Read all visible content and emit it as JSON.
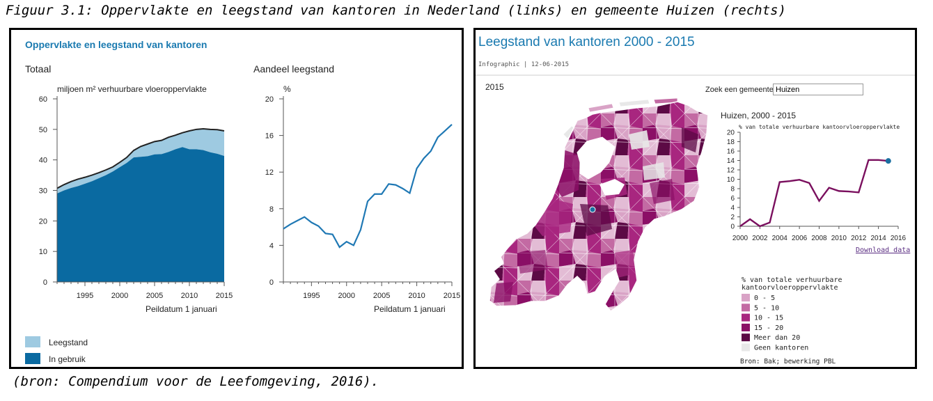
{
  "figure": {
    "caption": "Figuur 3.1: Oppervlakte en leegstand van kantoren in Nederland (links) en gemeente Huizen (rechts)",
    "source": "(bron: Compendium voor de Leefomgeving, 2016)."
  },
  "left": {
    "title": "Oppervlakte en leegstand van kantoren",
    "sub1": "Totaal",
    "sub2": "Aandeel leegstand",
    "unit1": "miljoen m² verhuurbare vloeroppervlakte",
    "unit2": "%",
    "xlabel": "Peildatum 1 januari",
    "legend": [
      "Leegstand",
      "In gebruik"
    ],
    "colors": {
      "leegstand": "#9ecae1",
      "in_gebruik": "#0a6aa1",
      "total_line": "#222222",
      "share_line": "#1f78b4"
    }
  },
  "right": {
    "title": "Leegstand van kantoren 2000 - 2015",
    "meta": "Infographic | 12-06-2015",
    "map_year": "2015",
    "search_label": "Zoek een gemeente:",
    "search_value": "Huizen",
    "chart_title": "Huizen, 2000 - 2015",
    "chart_sub": "% van totale verhuurbare kantoorvloeroppervlakte",
    "download": "Download data",
    "legend_title1": "% van totale verhuurbare",
    "legend_title2": "kantoorvloeroppervlakte",
    "legend_items": [
      {
        "label": "0 - 5",
        "color": "#d9a3c6"
      },
      {
        "label": "5 - 10",
        "color": "#c36aa3"
      },
      {
        "label": "10 - 15",
        "color": "#a8267f"
      },
      {
        "label": "15 - 20",
        "color": "#8b0f66"
      },
      {
        "label": "Meer dan 20",
        "color": "#5c0a45"
      },
      {
        "label": "Geen kantoren",
        "color": "#e8e8e8"
      }
    ],
    "credit": "Bron: Bak; bewerking PBL",
    "title_color": "#1a7ab0",
    "marker_color": "#1a6fa0",
    "line_color": "#7a0f5e"
  },
  "chart_data": [
    {
      "type": "area",
      "title": "Totaal",
      "ylabel": "miljoen m² verhuurbare vloeroppervlakte",
      "xlabel": "Peildatum 1 januari",
      "ylim": [
        0,
        60
      ],
      "xlim": [
        1991,
        2015
      ],
      "yticks": [
        0,
        10,
        20,
        30,
        40,
        50,
        60
      ],
      "xticks": [
        1995,
        2000,
        2005,
        2010,
        2015
      ],
      "x": [
        1991,
        1992,
        1993,
        1994,
        1995,
        1996,
        1997,
        1998,
        1999,
        2000,
        2001,
        2002,
        2003,
        2004,
        2005,
        2006,
        2007,
        2008,
        2009,
        2010,
        2011,
        2012,
        2013,
        2014,
        2015
      ],
      "series": [
        {
          "name": "In gebruik",
          "values": [
            29.0,
            30.0,
            30.8,
            31.4,
            32.2,
            33.0,
            34.0,
            35.0,
            36.2,
            37.6,
            39.0,
            40.8,
            41.0,
            41.2,
            41.8,
            41.9,
            42.6,
            43.5,
            44.2,
            43.5,
            43.5,
            43.2,
            42.5,
            42.0,
            41.3
          ]
        },
        {
          "name": "Leegstand",
          "values": [
            1.7,
            1.9,
            2.1,
            2.3,
            2.1,
            2.0,
            1.8,
            1.7,
            1.5,
            1.6,
            1.8,
            2.3,
            3.4,
            4.0,
            4.2,
            4.5,
            4.8,
            4.6,
            4.7,
            6.0,
            6.5,
            7.0,
            7.5,
            7.9,
            8.2
          ]
        }
      ]
    },
    {
      "type": "line",
      "title": "Aandeel leegstand",
      "ylabel": "%",
      "xlabel": "Peildatum 1 januari",
      "ylim": [
        0,
        20
      ],
      "xlim": [
        1991,
        2015
      ],
      "yticks": [
        0,
        4,
        8,
        12,
        16,
        20
      ],
      "xticks": [
        1995,
        2000,
        2005,
        2010,
        2015
      ],
      "x": [
        1991,
        1992,
        1993,
        1994,
        1995,
        1996,
        1997,
        1998,
        1999,
        2000,
        2001,
        2002,
        2003,
        2004,
        2005,
        2006,
        2007,
        2008,
        2009,
        2010,
        2011,
        2012,
        2013,
        2014,
        2015
      ],
      "series": [
        {
          "name": "Aandeel leegstand",
          "values": [
            5.8,
            6.3,
            6.7,
            7.1,
            6.5,
            6.1,
            5.3,
            5.2,
            3.8,
            4.4,
            4.0,
            5.7,
            8.8,
            9.6,
            9.6,
            10.7,
            10.6,
            10.2,
            9.7,
            12.4,
            13.5,
            14.3,
            15.8,
            16.5,
            17.2
          ]
        }
      ]
    },
    {
      "type": "line",
      "title": "Huizen, 2000 - 2015",
      "ylabel": "% van totale verhuurbare kantoorvloeroppervlakte",
      "ylim": [
        0,
        20
      ],
      "xlim": [
        2000,
        2016
      ],
      "yticks": [
        0,
        2,
        4,
        6,
        8,
        10,
        12,
        14,
        16,
        18,
        20
      ],
      "xticks": [
        2000,
        2002,
        2004,
        2006,
        2008,
        2010,
        2012,
        2014,
        2016
      ],
      "x": [
        2000,
        2001,
        2002,
        2003,
        2004,
        2005,
        2006,
        2007,
        2008,
        2009,
        2010,
        2011,
        2012,
        2013,
        2014,
        2015
      ],
      "series": [
        {
          "name": "Huizen",
          "values": [
            0.0,
            1.5,
            0.0,
            0.8,
            9.4,
            9.6,
            9.9,
            9.2,
            5.4,
            8.2,
            7.5,
            7.4,
            7.2,
            14.1,
            14.1,
            13.9
          ]
        }
      ]
    }
  ]
}
